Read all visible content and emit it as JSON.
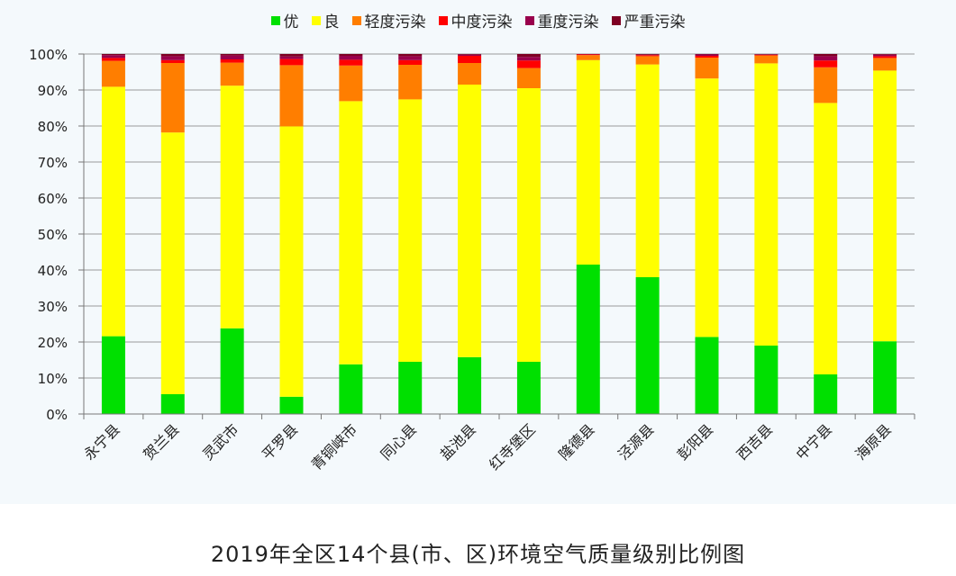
{
  "caption": "2019年全区14个县(市、区)环境空气质量级别比例图",
  "chart_data": {
    "type": "bar",
    "stacked": true,
    "title": "",
    "xlabel": "",
    "ylabel": "",
    "ylim": [
      0,
      100
    ],
    "y_unit": "%",
    "y_ticks": [
      "0%",
      "10%",
      "20%",
      "30%",
      "40%",
      "50%",
      "60%",
      "70%",
      "80%",
      "90%",
      "100%"
    ],
    "grid": true,
    "legend_position": "top",
    "categories": [
      "永宁县",
      "贺兰县",
      "灵武市",
      "平罗县",
      "青铜峡市",
      "同心县",
      "盐池县",
      "红寺堡区",
      "隆德县",
      "泾源县",
      "彭阳县",
      "西吉县",
      "中宁县",
      "海原县"
    ],
    "series": [
      {
        "name": "优",
        "color": "#00e000",
        "values": [
          21.6,
          5.5,
          23.8,
          4.8,
          13.8,
          14.5,
          15.8,
          14.5,
          41.5,
          38.0,
          21.4,
          19.0,
          11.0,
          20.2
        ]
      },
      {
        "name": "良",
        "color": "#ffff00",
        "values": [
          69.3,
          72.7,
          67.4,
          75.1,
          73.1,
          72.9,
          75.7,
          76.0,
          56.8,
          59.1,
          71.8,
          78.4,
          75.4,
          75.2
        ]
      },
      {
        "name": "轻度污染",
        "color": "#ff7e00",
        "values": [
          7.2,
          19.3,
          6.4,
          17.0,
          9.9,
          9.6,
          6.0,
          5.6,
          1.4,
          2.3,
          5.8,
          2.2,
          9.9,
          3.5
        ]
      },
      {
        "name": "中度污染",
        "color": "#ff0000",
        "values": [
          0.8,
          0.8,
          0.9,
          1.7,
          1.6,
          1.3,
          2.0,
          2.1,
          0.2,
          0.3,
          0.5,
          0.2,
          1.9,
          0.5
        ]
      },
      {
        "name": "重度污染",
        "color": "#99004c",
        "values": [
          0.8,
          1.1,
          1.1,
          0.7,
          1.1,
          1.1,
          0.3,
          1.0,
          0.1,
          0.1,
          0.4,
          0.1,
          1.2,
          0.4
        ]
      },
      {
        "name": "严重污染",
        "color": "#7e0023",
        "values": [
          0.3,
          0.6,
          0.4,
          0.7,
          0.5,
          0.6,
          0.2,
          0.8,
          0.0,
          0.2,
          0.1,
          0.1,
          0.6,
          0.2
        ]
      }
    ]
  }
}
